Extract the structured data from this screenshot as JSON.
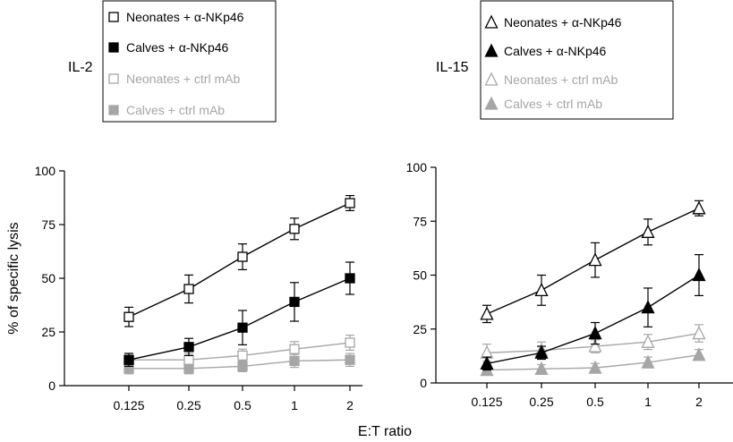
{
  "chart_data": [
    {
      "type": "line",
      "panel_label": "IL-2",
      "xlabel": "",
      "ylabel": "% of specific lysis",
      "categories": [
        "0.125",
        "0.25",
        "0.5",
        "1",
        "2"
      ],
      "ylim": [
        0,
        100
      ],
      "yticks": [
        "0",
        "25",
        "50",
        "75",
        "100"
      ],
      "legend_position": "top-left",
      "series": [
        {
          "name": "Neonates + α-NKp46",
          "marker": "square-open",
          "color": "#000000",
          "values": [
            32,
            45,
            60,
            73,
            85
          ],
          "errors": [
            4.5,
            6.5,
            6,
            5,
            3.5
          ]
        },
        {
          "name": "Calves + α-NKp46",
          "marker": "square-filled",
          "color": "#000000",
          "values": [
            12,
            18,
            27,
            39,
            50
          ],
          "errors": [
            3,
            4,
            8,
            9,
            7.5
          ]
        },
        {
          "name": "Neonates + ctrl mAb",
          "marker": "square-open",
          "color": "#a6a6a6",
          "values": [
            12,
            12,
            14,
            17,
            20
          ],
          "errors": [
            3,
            3,
            3,
            3.5,
            3.5
          ]
        },
        {
          "name": "Calves + ctrl mAb",
          "marker": "square-filled",
          "color": "#a6a6a6",
          "values": [
            8,
            8,
            9,
            11.5,
            12
          ],
          "errors": [
            2.5,
            2.5,
            2.5,
            3,
            3
          ]
        }
      ]
    },
    {
      "type": "line",
      "panel_label": "IL-15",
      "xlabel": "E:T ratio",
      "ylabel": "",
      "categories": [
        "0.125",
        "0.25",
        "0.5",
        "1",
        "2"
      ],
      "ylim": [
        0,
        100
      ],
      "yticks": [
        "0",
        "25",
        "50",
        "75",
        "100"
      ],
      "legend_position": "top-left",
      "series": [
        {
          "name": "Neonates + α-NKp46",
          "marker": "triangle-open",
          "color": "#000000",
          "values": [
            32,
            43,
            57,
            70,
            81
          ],
          "errors": [
            4,
            7,
            8,
            6,
            3.5
          ]
        },
        {
          "name": "Calves + α-NKp46",
          "marker": "triangle-filled",
          "color": "#000000",
          "values": [
            9,
            14,
            23,
            35,
            50
          ],
          "errors": [
            3,
            3,
            5,
            9,
            9.5
          ]
        },
        {
          "name": "Neonates + ctrl mAb",
          "marker": "triangle-open",
          "color": "#a6a6a6",
          "values": [
            14,
            15,
            17,
            19,
            23
          ],
          "errors": [
            4,
            4,
            3,
            3.5,
            4
          ]
        },
        {
          "name": "Calves + ctrl mAb",
          "marker": "triangle-filled",
          "color": "#a6a6a6",
          "values": [
            6,
            6.5,
            7,
            9.5,
            13
          ],
          "errors": [
            2,
            2,
            2,
            2.5,
            2.5
          ]
        }
      ]
    }
  ]
}
